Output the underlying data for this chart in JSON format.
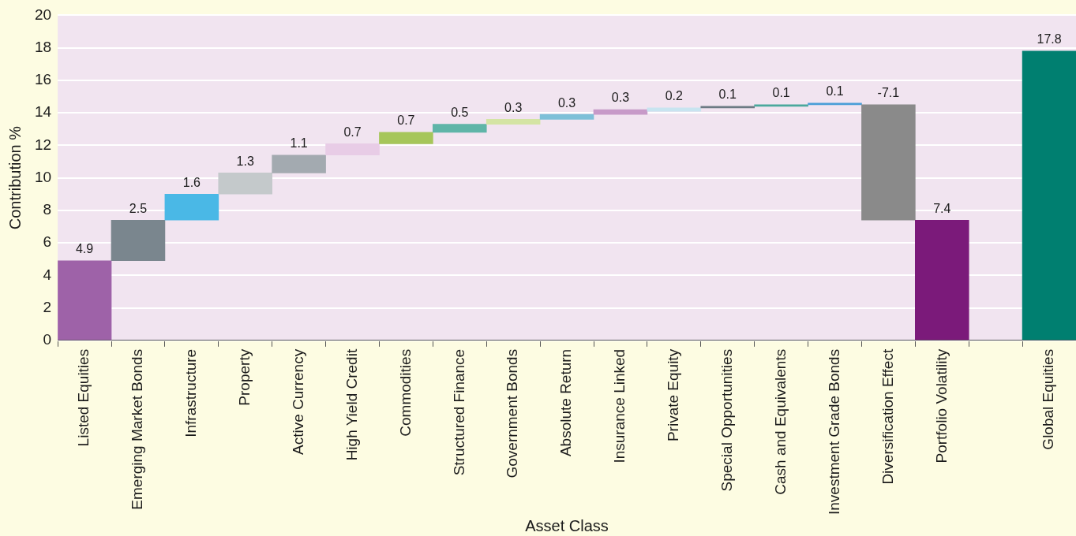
{
  "chart_data": {
    "type": "bar",
    "xlabel": "Asset Class",
    "ylabel": "Contribution %",
    "categories": [
      "Listed Equities",
      "Emerging Market Bonds",
      "Infrastructure",
      "Property",
      "Active Currency",
      "High Yield Credit",
      "Commodities",
      "Structured Finance",
      "Government Bonds",
      "Absolute Return",
      "Insurance Linked",
      "Private Equity",
      "Special Opportunities",
      "Cash and Equivalents",
      "Investment Grade Bonds",
      "Diversification Effect",
      "Portfolio Volatility",
      null,
      "Global Equities"
    ],
    "values": [
      4.9,
      2.5,
      1.6,
      1.3,
      1.1,
      0.7,
      0.7,
      0.5,
      0.3,
      0.3,
      0.3,
      0.2,
      0.1,
      0.1,
      0.1,
      -7.1,
      7.4,
      null,
      17.8
    ],
    "base": [
      0,
      4.9,
      7.4,
      9.0,
      10.3,
      11.4,
      12.1,
      12.8,
      13.3,
      13.6,
      13.9,
      14.1,
      14.3,
      14.4,
      14.5,
      14.5,
      0,
      null,
      0
    ],
    "colors": [
      "#9e62a8",
      "#7a868e",
      "#4ab8e6",
      "#c4c9cb",
      "#a3aab0",
      "#e8cce6",
      "#a6c65a",
      "#5fb5a8",
      "#d4e4a4",
      "#7ec0d8",
      "#c79ac8",
      "#c8e4f0",
      "#6c7a84",
      "#4aa89c",
      "#4a9ed8",
      "#8a8a8a",
      "#7b1a7a",
      "#000000",
      "#007f70"
    ],
    "ylim": [
      0,
      20
    ],
    "yticks": [
      0,
      2,
      4,
      6,
      8,
      10,
      12,
      14,
      16,
      18,
      20
    ],
    "grid": "y",
    "legend": false,
    "data_labels": true
  }
}
